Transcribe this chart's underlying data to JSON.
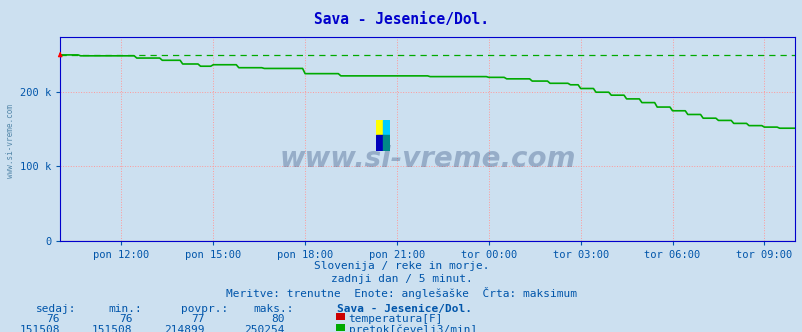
{
  "title": "Sava - Jesenice/Dol.",
  "bg_color": "#cce0f0",
  "plot_bg_color": "#cce0f0",
  "grid_color": "#ff9999",
  "grid_linestyle": ":",
  "xlim": [
    0,
    288
  ],
  "ylim": [
    0,
    275000
  ],
  "yticks": [
    0,
    100000,
    200000
  ],
  "ytick_labels": [
    "0",
    "100 k",
    "200 k"
  ],
  "xtick_positions": [
    24,
    60,
    96,
    132,
    168,
    204,
    240,
    276
  ],
  "xtick_labels": [
    "pon 12:00",
    "pon 15:00",
    "pon 18:00",
    "pon 21:00",
    "tor 00:00",
    "tor 03:00",
    "tor 06:00",
    "tor 09:00"
  ],
  "temp_color": "#cc0000",
  "flow_color": "#00aa00",
  "max_line_color": "#00aa00",
  "temp_value": 76,
  "temp_min": 76,
  "temp_avg": 77,
  "temp_maks": 80,
  "flow_sedaj": 151508,
  "flow_min": 151508,
  "flow_avg": 214899,
  "flow_maks": 250254,
  "subtitle1": "Slovenija / reke in morje.",
  "subtitle2": "zadnji dan / 5 minut.",
  "subtitle3": "Meritve: trenutne  Enote: anglešaške  Črta: maksimum",
  "label_sedaj": "sedaj:",
  "label_min": "min.:",
  "label_povpr": "povpr.:",
  "label_maks": "maks.:",
  "label_station": "Sava - Jesenice/Dol.",
  "label_temp": "temperatura[F]",
  "label_flow": "pretok[čevelj3/min]",
  "watermark": "www.si-vreme.com",
  "watermark_color": "#1a3a6e",
  "side_text": "www.si-vreme.com",
  "title_color": "#0000cc",
  "tick_color": "#0055aa",
  "subtitle_color": "#0055aa",
  "table_header_color": "#0055aa",
  "table_value_color": "#0055aa",
  "spine_color": "#0000cc",
  "logo_colors": [
    "#ffff00",
    "#00ccff",
    "#0000cc",
    "#008888"
  ]
}
